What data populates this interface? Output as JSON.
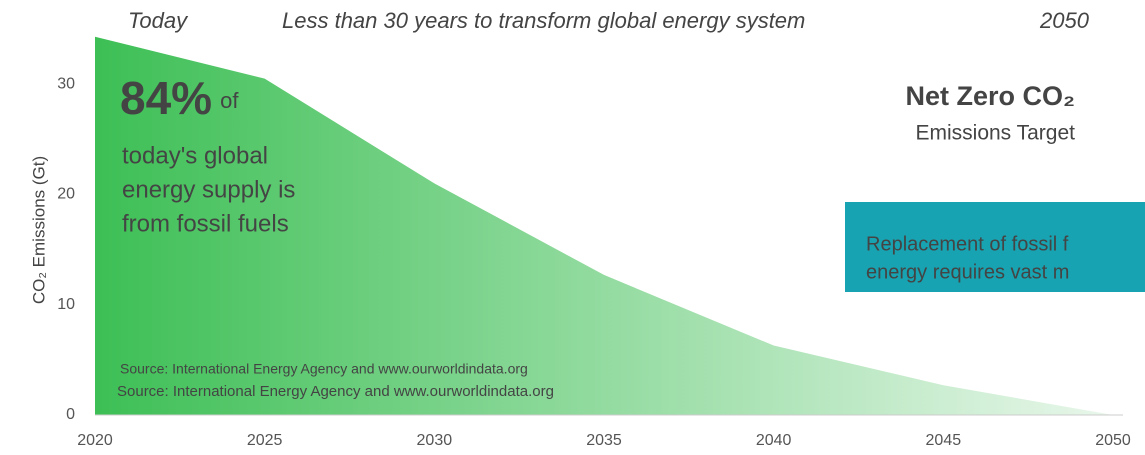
{
  "chart_data": {
    "type": "area",
    "header_left": "Today",
    "title": "Less than 30 years to transform global energy system",
    "header_right": "2050",
    "y_label": "CO₂ Emissions (Gt)",
    "x": [
      2020,
      2025,
      2030,
      2035,
      2040,
      2045,
      2050
    ],
    "values": [
      34.3,
      30.5,
      21,
      12.7,
      6.3,
      2.7,
      0
    ],
    "xlim": [
      2020,
      2050
    ],
    "xticks": [
      2020,
      2025,
      2030,
      2035,
      2040,
      2045,
      2050
    ],
    "ylim": [
      0,
      35
    ],
    "yticks": [
      0,
      10,
      20,
      30
    ],
    "color_start": "#3dbf55",
    "color_end": "#e9f7eb",
    "callout": {
      "big": "84%",
      "small": "of",
      "lines": [
        "today's global",
        "energy supply is",
        "from fossil fuels"
      ]
    },
    "target": {
      "title": "Net Zero CO₂",
      "subtitle": "Emissions Target"
    },
    "box": {
      "color": "#17a3b1",
      "lines": [
        "Replacement of fossil f",
        "energy requires vast m"
      ]
    },
    "sources": [
      "Source: International Energy Agency and www.ourworldindata.org",
      "Source: International Energy Agency and www.ourworldindata.org"
    ]
  }
}
